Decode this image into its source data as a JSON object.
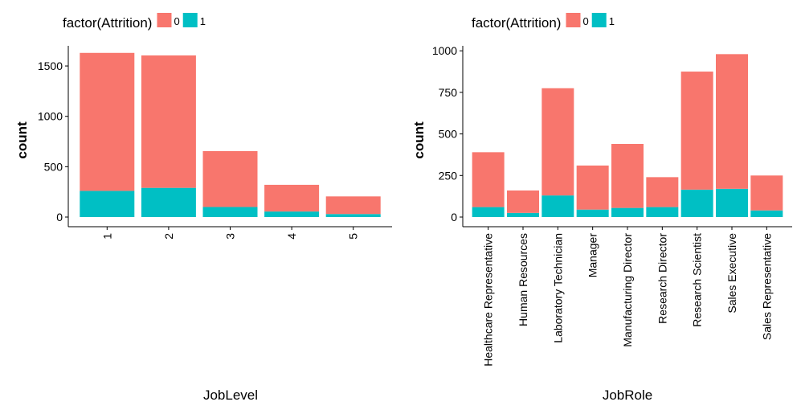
{
  "colors": {
    "attrition_0": "#F8766D",
    "attrition_1": "#00BFC4"
  },
  "chart_data": [
    {
      "type": "bar",
      "stacked": true,
      "legend": {
        "title": "factor(Attrition)",
        "entries": [
          "0",
          "1"
        ],
        "placement": "top-left"
      },
      "xlabel": "JobLevel",
      "ylabel": "count",
      "categories": [
        "1",
        "2",
        "3",
        "4",
        "5"
      ],
      "series": [
        {
          "name": "0",
          "values": [
            1370,
            1315,
            555,
            265,
            175
          ]
        },
        {
          "name": "1",
          "values": [
            260,
            290,
            100,
            55,
            30
          ]
        }
      ],
      "ylim": [
        0,
        1700
      ],
      "yticks": [
        0,
        500,
        1000,
        1500
      ],
      "ytick_labels": [
        "0",
        "500",
        "1000",
        "1500"
      ],
      "grid": false
    },
    {
      "type": "bar",
      "stacked": true,
      "legend": {
        "title": "factor(Attrition)",
        "entries": [
          "0",
          "1"
        ],
        "placement": "top-left"
      },
      "xlabel": "JobRole",
      "ylabel": "count",
      "categories": [
        "Healthcare Representative",
        "Human Resources",
        "Laboratory Technician",
        "Manager",
        "Manufacturing Director",
        "Research Director",
        "Research Scientist",
        "Sales Executive",
        "Sales Representative"
      ],
      "series": [
        {
          "name": "0",
          "values": [
            330,
            135,
            645,
            265,
            385,
            180,
            710,
            810,
            210
          ]
        },
        {
          "name": "1",
          "values": [
            60,
            25,
            130,
            45,
            55,
            60,
            165,
            170,
            40
          ]
        }
      ],
      "ylim": [
        0,
        1030
      ],
      "yticks": [
        0,
        250,
        500,
        750,
        1000
      ],
      "ytick_labels": [
        "0",
        "250",
        "500",
        "750",
        "1000"
      ],
      "grid": false
    }
  ]
}
